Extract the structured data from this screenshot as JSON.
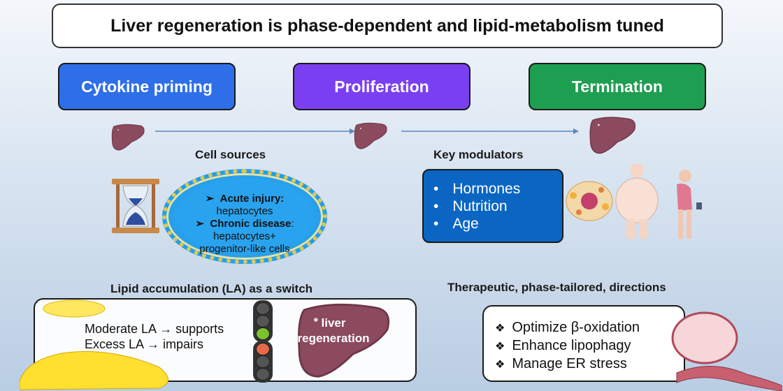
{
  "title": "Liver regeneration is phase-dependent and lipid-metabolism tuned",
  "phases": [
    {
      "label": "Cytokine priming",
      "color": "#2e6ee8"
    },
    {
      "label": "Proliferation",
      "color": "#7b3ff2"
    },
    {
      "label": "Termination",
      "color": "#1e9e50"
    }
  ],
  "cell_sources": {
    "heading": "Cell sources",
    "acute_label": "Acute injury:",
    "acute_value": "hepatocytes",
    "chronic_label": "Chronic disease",
    "chronic_colon": ":",
    "chronic_value1": "hepatocytes+",
    "chronic_value2": "progenitor-like cells"
  },
  "modulators": {
    "heading": "Key modulators",
    "items": [
      "Hormones",
      "Nutrition",
      "Age"
    ]
  },
  "lipid": {
    "heading": "Lipid accumulation (LA) as a switch",
    "line1": "Moderate LA → supports",
    "line2": "Excess LA → impairs",
    "liver_label1": "liver",
    "liver_label2": "regeneration",
    "green_light": "#7dc22e",
    "red_light": "#e8684a"
  },
  "therapeutic": {
    "heading": "Therapeutic, phase-tailored, directions",
    "items": [
      "Optimize β-oxidation",
      "Enhance lipophagy",
      "Manage ER stress"
    ]
  },
  "liver_color": "#8b4a5e"
}
